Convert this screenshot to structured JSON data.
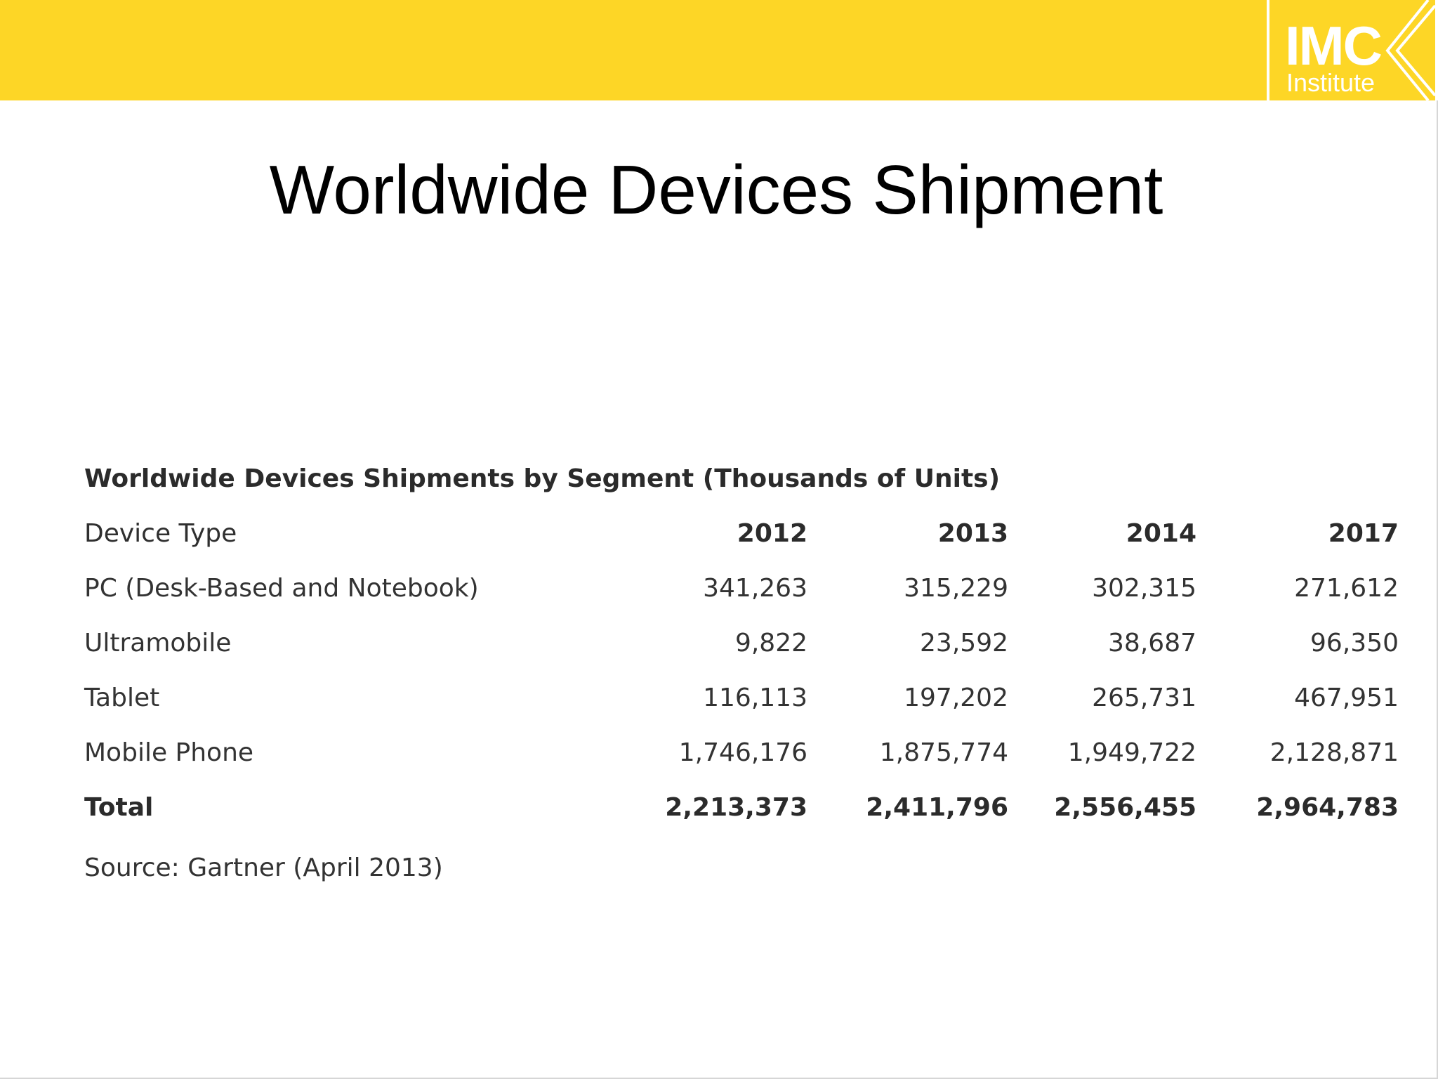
{
  "brand": {
    "logo_line1": "IMC",
    "logo_line2": "Institute",
    "band_color": "#fdd626",
    "logo_text_color": "#ffffff"
  },
  "slide": {
    "title": "Worldwide Devices Shipment"
  },
  "table": {
    "caption": "Worldwide Devices Shipments by Segment (Thousands of Units)",
    "header": {
      "label": "Device Type",
      "years": [
        "2012",
        "2013",
        "2014",
        "2017"
      ]
    },
    "rows": [
      {
        "label": "PC (Desk-Based and Notebook)",
        "values": [
          "341,263",
          "315,229",
          "302,315",
          "271,612"
        ]
      },
      {
        "label": "Ultramobile",
        "values": [
          "9,822",
          "23,592",
          "38,687",
          "96,350"
        ]
      },
      {
        "label": "Tablet",
        "values": [
          "116,113",
          "197,202",
          "265,731",
          "467,951"
        ]
      },
      {
        "label": "Mobile Phone",
        "values": [
          "1,746,176",
          "1,875,774",
          "1,949,722",
          "2,128,871"
        ]
      },
      {
        "label": "Total",
        "values": [
          "2,213,373",
          "2,411,796",
          "2,556,455",
          "2,964,783"
        ]
      }
    ],
    "source": "Source: Gartner (April 2013)"
  }
}
